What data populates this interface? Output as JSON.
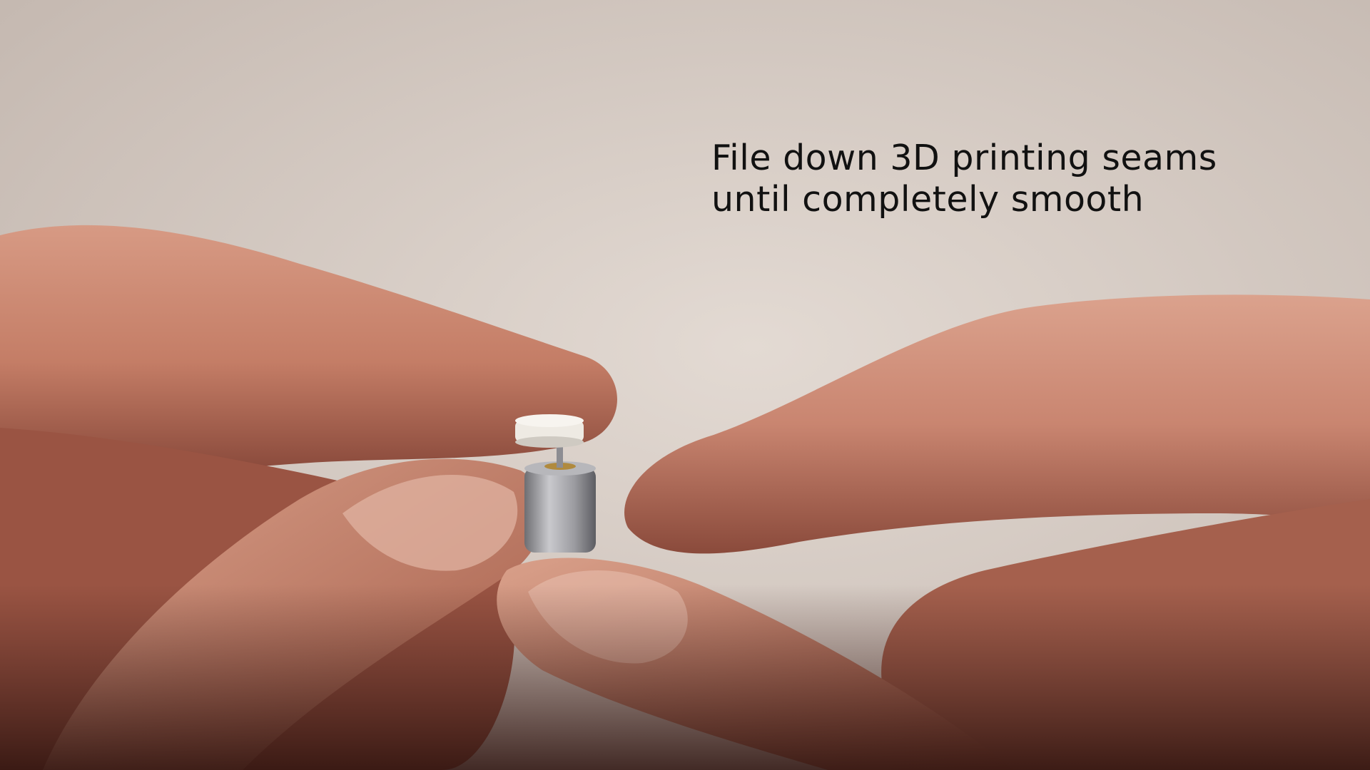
{
  "caption": {
    "line1": "File down 3D printing seams",
    "line2": "until completely smooth"
  },
  "scene": {
    "background_color": "#d6ccc5",
    "skin_color": "#c98a72",
    "skin_shadow_color": "#5a2a22",
    "motor_color": "#a9a9ad",
    "part_color": "#f1ede6"
  }
}
